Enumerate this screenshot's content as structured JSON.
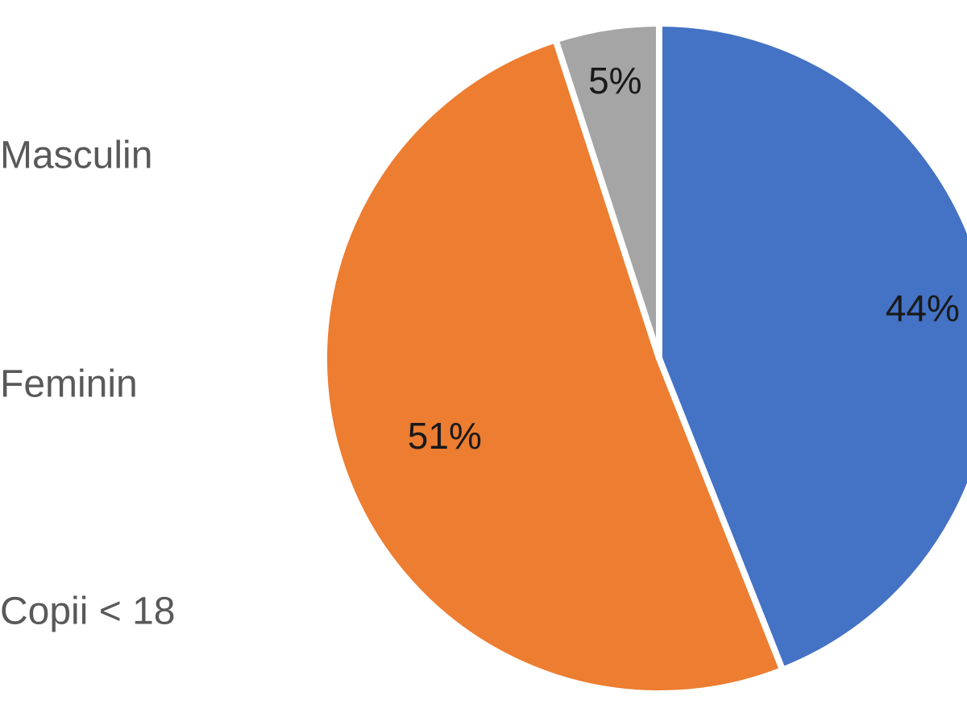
{
  "chart_data": {
    "type": "pie",
    "title": "",
    "legend_position": "left",
    "slices": [
      {
        "name": "Masculin",
        "value": 44,
        "label": "44%",
        "color": "#4472C4"
      },
      {
        "name": "Feminin",
        "value": 51,
        "label": "51%",
        "color": "#ED7D31"
      },
      {
        "name": "Copii < 18",
        "value": 5,
        "label": "5%",
        "color": "#A5A5A5"
      }
    ]
  }
}
